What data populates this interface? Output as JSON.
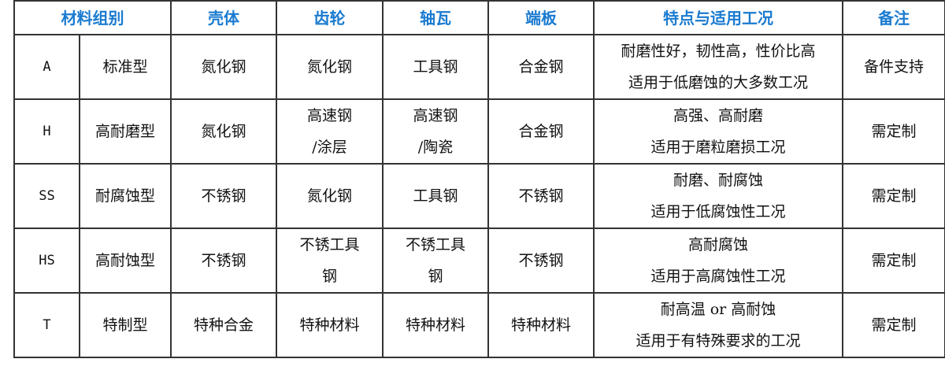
{
  "headers": [
    "材料组别",
    "壳体",
    "齿轮",
    "轴瓦",
    "端板",
    "特点与适用工况",
    "备注"
  ],
  "rows": [
    {
      "code": "A",
      "type": "标准型",
      "shell": [
        "氮化钢"
      ],
      "gear": [
        "氮化钢"
      ],
      "bearing": [
        "工具钢"
      ],
      "plate": [
        "合金钢"
      ],
      "features": [
        "耐磨性好，韧性高，性价比高",
        "适用于低磨蚀的大多数工况"
      ],
      "note": "备件支持"
    },
    {
      "code": "H",
      "type": "高耐磨型",
      "shell": [
        "氮化钢"
      ],
      "gear": [
        "高速钢",
        "/涂层"
      ],
      "bearing": [
        "高速钢",
        "/陶瓷"
      ],
      "plate": [
        "合金钢"
      ],
      "features": [
        "高强、高耐磨",
        "适用于磨粒磨损工况"
      ],
      "note": "需定制"
    },
    {
      "code": "SS",
      "type": "耐腐蚀型",
      "shell": [
        "不锈钢"
      ],
      "gear": [
        "氮化钢"
      ],
      "bearing": [
        "工具钢"
      ],
      "plate": [
        "不锈钢"
      ],
      "features": [
        "耐磨、耐腐蚀",
        "适用于低腐蚀性工况"
      ],
      "note": "需定制"
    },
    {
      "code": "HS",
      "type": "高耐蚀型",
      "shell": [
        "不锈钢"
      ],
      "gear": [
        "不锈工具",
        "钢"
      ],
      "bearing": [
        "不锈工具",
        "钢"
      ],
      "plate": [
        "不锈钢"
      ],
      "features": [
        "高耐腐蚀",
        "适用于高腐蚀性工况"
      ],
      "note": "需定制"
    },
    {
      "code": "T",
      "type": "特制型",
      "shell": [
        "特种合金"
      ],
      "gear": [
        "特种材料"
      ],
      "bearing": [
        "特种材料"
      ],
      "plate": [
        "特种材料"
      ],
      "features": [
        "耐高温 or 高耐蚀",
        "适用于有特殊要求的工况"
      ],
      "note": "需定制"
    }
  ],
  "colors": {
    "header_text": "#1a7bd0",
    "border": "#333333"
  }
}
